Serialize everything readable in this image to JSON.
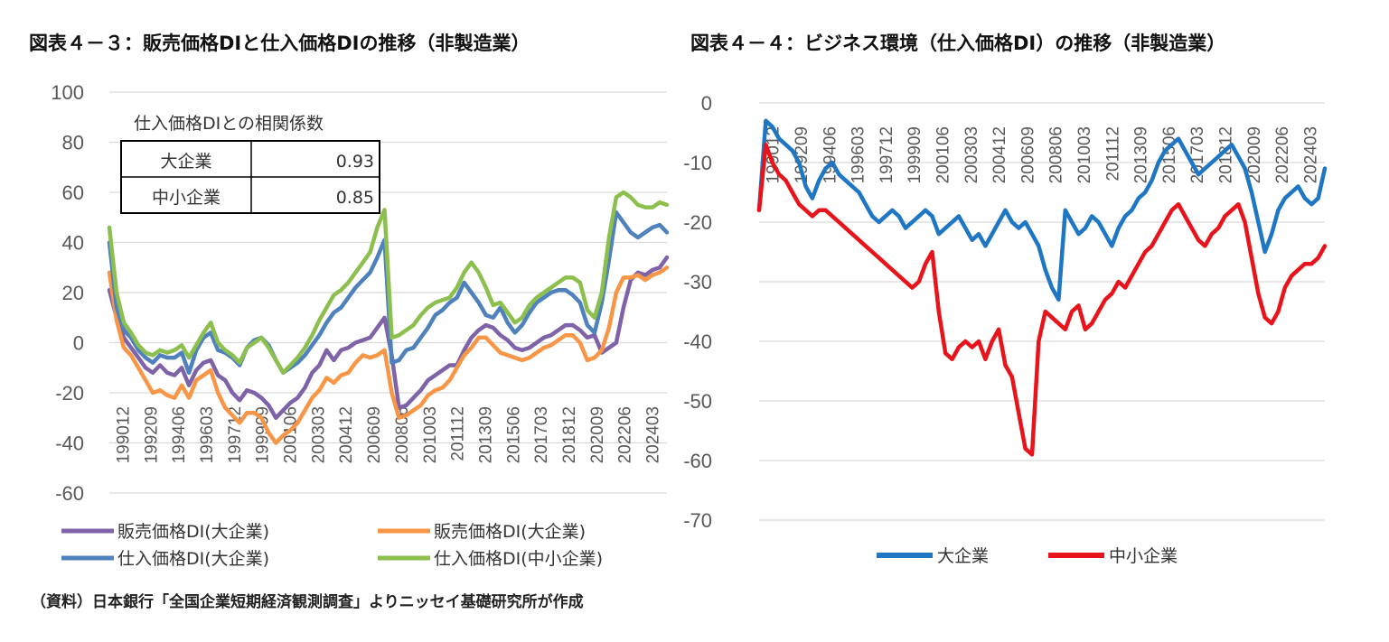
{
  "left_title": "図表４－３：販売価格DIと仕入価格DIの推移（非製造業）",
  "right_title": "図表４－４：ビジネス環境（仕入価格DI）の推移（非製造業）",
  "source": "（資料）日本銀行「全国企業短期経済観測調査」よりニッセイ基礎研究所が作成",
  "colors": {
    "purple": "#7F63A8",
    "orange": "#F79646",
    "blue": "#4F81BD",
    "green": "#8DBF4F",
    "blue2": "#1F77C4",
    "red": "#E8141B",
    "grid": "#D9D9D9"
  },
  "correlation_table": {
    "title": "仕入価格DIとの相関係数",
    "rows": [
      {
        "label": "大企業",
        "value": "0.93"
      },
      {
        "label": "中小企業",
        "value": "0.85"
      }
    ]
  },
  "chart_data": [
    {
      "type": "line",
      "ylim": [
        -60,
        100
      ],
      "yticks": [
        -60,
        -40,
        -20,
        0,
        20,
        40,
        60,
        80,
        100
      ],
      "xtick_labels": [
        "199012",
        "199209",
        "199406",
        "199603",
        "199712",
        "199909",
        "200106",
        "200303",
        "200412",
        "200609",
        "200806",
        "201003",
        "201112",
        "201309",
        "201506",
        "201703",
        "201812",
        "202009",
        "202206",
        "202403"
      ],
      "legend": [
        "販売価格DI(大企業)",
        "販売価格DI(大企業)",
        "仕入価格DI(大企業)",
        "仕入価格DI(中小企業)"
      ],
      "series": [
        {
          "name": "販売価格DI(大企業)",
          "color": "#7F63A8",
          "values": [
            21,
            10,
            2,
            -2,
            -6,
            -10,
            -12,
            -9,
            -12,
            -13,
            -10,
            -17,
            -11,
            -8,
            -7,
            -13,
            -15,
            -20,
            -23,
            -19,
            -20,
            -22,
            -25,
            -30,
            -27,
            -24,
            -22,
            -18,
            -12,
            -9,
            -3,
            -7,
            -3,
            -2,
            0,
            1,
            2,
            6,
            10,
            -5,
            -26,
            -25,
            -22,
            -19,
            -15,
            -13,
            -11,
            -9,
            -9,
            -3,
            2,
            5,
            7,
            6,
            3,
            1,
            -2,
            -3,
            -2,
            0,
            2,
            3,
            5,
            7,
            7,
            5,
            2,
            3,
            -4,
            -2,
            0,
            14,
            25,
            28,
            27,
            29,
            30,
            34
          ]
        },
        {
          "name": "販売価格DI(大企業)",
          "color": "#F79646",
          "values": [
            28,
            9,
            -2,
            -5,
            -10,
            -15,
            -20,
            -19,
            -21,
            -22,
            -17,
            -22,
            -15,
            -13,
            -11,
            -20,
            -26,
            -29,
            -32,
            -28,
            -28,
            -30,
            -36,
            -40,
            -37,
            -35,
            -32,
            -27,
            -22,
            -19,
            -14,
            -16,
            -13,
            -12,
            -8,
            -5,
            -6,
            -5,
            -3,
            -20,
            -30,
            -29,
            -27,
            -25,
            -21,
            -19,
            -18,
            -15,
            -10,
            -5,
            -2,
            2,
            2,
            -1,
            -4,
            -5,
            -6,
            -7,
            -6,
            -4,
            -2,
            -1,
            1,
            3,
            3,
            0,
            -7,
            -6,
            -3,
            6,
            20,
            26,
            26,
            27,
            25,
            27,
            28,
            30
          ]
        },
        {
          "name": "仕入価格DI(大企業)",
          "color": "#4F81BD",
          "values": [
            40,
            14,
            5,
            2,
            -3,
            -6,
            -8,
            -5,
            -6,
            -6,
            -4,
            -12,
            -3,
            2,
            4,
            -3,
            -4,
            -6,
            -9,
            -2,
            1,
            2,
            -1,
            -7,
            -12,
            -10,
            -8,
            -5,
            -1,
            3,
            8,
            12,
            14,
            18,
            22,
            25,
            28,
            34,
            41,
            -8,
            -7,
            -3,
            -2,
            2,
            6,
            11,
            13,
            16,
            18,
            24,
            20,
            16,
            11,
            10,
            14,
            8,
            4,
            7,
            12,
            16,
            18,
            20,
            21,
            21,
            19,
            16,
            7,
            4,
            16,
            33,
            52,
            48,
            44,
            42,
            44,
            46,
            47,
            44
          ]
        },
        {
          "name": "仕入価格DI(中小企業)",
          "color": "#8DBF4F",
          "values": [
            46,
            20,
            8,
            4,
            -1,
            -4,
            -5,
            -3,
            -4,
            -3,
            -1,
            -6,
            -1,
            4,
            8,
            0,
            -3,
            -5,
            -8,
            -2,
            0,
            2,
            -2,
            -7,
            -12,
            -9,
            -6,
            -2,
            3,
            9,
            14,
            19,
            21,
            24,
            28,
            32,
            36,
            46,
            53,
            2,
            3,
            5,
            7,
            11,
            14,
            16,
            17,
            18,
            22,
            28,
            32,
            28,
            22,
            15,
            16,
            12,
            8,
            10,
            15,
            18,
            20,
            22,
            24,
            26,
            26,
            24,
            13,
            10,
            20,
            42,
            58,
            60,
            58,
            55,
            54,
            54,
            56,
            55
          ]
        }
      ]
    },
    {
      "type": "line",
      "ylim": [
        -70,
        0
      ],
      "yticks": [
        0,
        -10,
        -20,
        -30,
        -40,
        -50,
        -60,
        -70
      ],
      "xtick_labels": [
        "199012",
        "199209",
        "199406",
        "199603",
        "199712",
        "199909",
        "200106",
        "200303",
        "200412",
        "200609",
        "200806",
        "201003",
        "201112",
        "201309",
        "201506",
        "201703",
        "201812",
        "202009",
        "202206",
        "202403"
      ],
      "legend": [
        "大企業",
        "中小企業"
      ],
      "series": [
        {
          "name": "大企業",
          "color": "#1F77C4",
          "values": [
            -18,
            -3,
            -4,
            -6,
            -7,
            -8,
            -10,
            -14,
            -16,
            -13,
            -11,
            -10,
            -12,
            -13,
            -14,
            -15,
            -17,
            -19,
            -20,
            -19,
            -18,
            -19,
            -21,
            -20,
            -19,
            -18,
            -19,
            -22,
            -21,
            -20,
            -19,
            -21,
            -23,
            -22,
            -24,
            -22,
            -20,
            -18,
            -20,
            -21,
            -20,
            -22,
            -24,
            -28,
            -31,
            -33,
            -18,
            -20,
            -22,
            -21,
            -19,
            -20,
            -22,
            -24,
            -21,
            -19,
            -18,
            -16,
            -15,
            -13,
            -10,
            -8,
            -7,
            -6,
            -8,
            -10,
            -12,
            -11,
            -10,
            -9,
            -8,
            -7,
            -9,
            -11,
            -15,
            -20,
            -25,
            -22,
            -18,
            -16,
            -15,
            -14,
            -16,
            -17,
            -16,
            -11
          ]
        },
        {
          "name": "中小企業",
          "color": "#E8141B",
          "values": [
            -18,
            -7,
            -10,
            -12,
            -13,
            -15,
            -17,
            -18,
            -19,
            -18,
            -18,
            -19,
            -20,
            -21,
            -22,
            -23,
            -24,
            -25,
            -26,
            -27,
            -28,
            -29,
            -30,
            -31,
            -30,
            -27,
            -25,
            -35,
            -42,
            -43,
            -41,
            -40,
            -41,
            -40,
            -43,
            -40,
            -38,
            -44,
            -46,
            -52,
            -58,
            -59,
            -40,
            -35,
            -36,
            -37,
            -38,
            -35,
            -34,
            -38,
            -37,
            -35,
            -33,
            -32,
            -30,
            -31,
            -29,
            -27,
            -25,
            -24,
            -22,
            -20,
            -18,
            -17,
            -19,
            -21,
            -23,
            -24,
            -22,
            -21,
            -19,
            -18,
            -17,
            -20,
            -26,
            -32,
            -36,
            -37,
            -35,
            -31,
            -29,
            -28,
            -27,
            -27,
            -26,
            -24
          ]
        }
      ]
    }
  ]
}
